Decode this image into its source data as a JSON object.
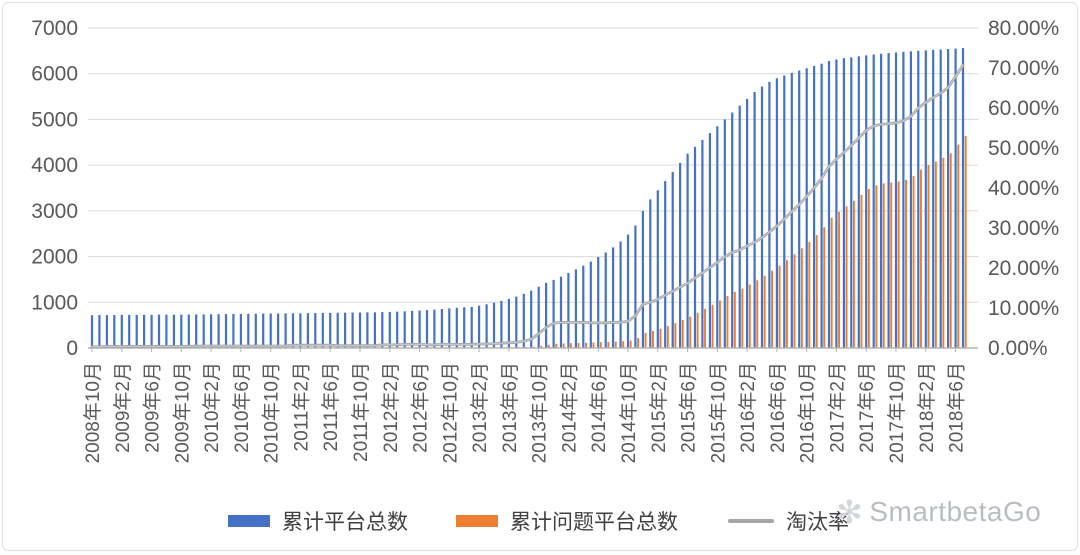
{
  "watermark": {
    "text": "SmartbetaGo",
    "icon": "snowflake-logo"
  },
  "chart_data": {
    "type": "bar",
    "subtype": "monthly bars with rate line (combo chart, dual axis)",
    "title": "",
    "x_start": "2008年10月",
    "x_end": "2018年7月",
    "x_points": 118,
    "x_tick_every": 4,
    "x_tick_labels": [
      "2008年10月",
      "2009年2月",
      "2009年6月",
      "2009年10月",
      "2010年2月",
      "2010年6月",
      "2010年10月",
      "2011年2月",
      "2011年6月",
      "2011年10月",
      "2012年2月",
      "2012年6月",
      "2012年10月",
      "2013年2月",
      "2013年6月",
      "2013年10月",
      "2014年2月",
      "2014年6月",
      "2014年10月",
      "2015年2月",
      "2015年6月",
      "2015年10月",
      "2016年2月",
      "2016年6月",
      "2016年10月",
      "2017年2月",
      "2017年6月",
      "2017年10月",
      "2018年2月",
      "2018年6月"
    ],
    "left_axis": {
      "min": 0,
      "max": 7000,
      "step": 1000,
      "ticks": [
        "0",
        "1000",
        "2000",
        "3000",
        "4000",
        "5000",
        "6000",
        "7000"
      ]
    },
    "right_axis": {
      "min": 0,
      "max": 80,
      "step": 10,
      "ticks": [
        "0.00%",
        "10.00%",
        "20.00%",
        "30.00%",
        "40.00%",
        "50.00%",
        "60.00%",
        "70.00%",
        "80.00%"
      ]
    },
    "grid": "horizontal",
    "legend_position": "bottom",
    "series": [
      {
        "name": "累计平台总数",
        "type": "bar",
        "axis": "left",
        "color": "#4472C4",
        "values": [
          718,
          719,
          720,
          722,
          723,
          724,
          725,
          726,
          727,
          728,
          729,
          730,
          731,
          733,
          734,
          736,
          738,
          740,
          742,
          744,
          746,
          748,
          750,
          752,
          754,
          755,
          756,
          758,
          760,
          762,
          764,
          766,
          768,
          770,
          772,
          774,
          776,
          778,
          782,
          785,
          790,
          796,
          803,
          811,
          820,
          830,
          841,
          853,
          866,
          880,
          890,
          900,
          925,
          955,
          990,
          1030,
          1075,
          1125,
          1185,
          1255,
          1340,
          1425,
          1490,
          1560,
          1640,
          1720,
          1800,
          1890,
          1990,
          2090,
          2200,
          2330,
          2480,
          2680,
          3000,
          3250,
          3450,
          3650,
          3850,
          4050,
          4250,
          4400,
          4550,
          4700,
          4850,
          5000,
          5150,
          5300,
          5450,
          5600,
          5720,
          5820,
          5900,
          5960,
          6020,
          6070,
          6120,
          6170,
          6220,
          6280,
          6310,
          6340,
          6360,
          6380,
          6400,
          6420,
          6435,
          6450,
          6465,
          6480,
          6490,
          6500,
          6510,
          6520,
          6530,
          6540,
          6550,
          6560
        ]
      },
      {
        "name": "累计问题平台总数",
        "type": "bar",
        "axis": "left",
        "color": "#ED7D31",
        "values": [
          2,
          2,
          3,
          3,
          3,
          3,
          3,
          3,
          3,
          3,
          3,
          3,
          3,
          3,
          4,
          4,
          4,
          4,
          4,
          4,
          4,
          4,
          4,
          4,
          4,
          4,
          4,
          5,
          5,
          5,
          5,
          5,
          5,
          5,
          5,
          5,
          5,
          5,
          5,
          6,
          6,
          6,
          7,
          7,
          7,
          7,
          7,
          8,
          8,
          8,
          8,
          8,
          9,
          10,
          11,
          12,
          14,
          16,
          20,
          28,
          48,
          72,
          92,
          100,
          105,
          110,
          115,
          120,
          126,
          132,
          140,
          150,
          165,
          215,
          330,
          370,
          420,
          480,
          545,
          615,
          690,
          770,
          855,
          945,
          1040,
          1140,
          1230,
          1300,
          1390,
          1480,
          1580,
          1690,
          1800,
          1920,
          2050,
          2180,
          2320,
          2470,
          2640,
          2850,
          2980,
          3100,
          3220,
          3350,
          3480,
          3560,
          3600,
          3620,
          3640,
          3680,
          3760,
          3900,
          4000,
          4080,
          4160,
          4260,
          4450,
          4640
        ]
      },
      {
        "name": "淘汰率",
        "type": "line",
        "axis": "right",
        "color": "#A6A6A6",
        "unit": "%",
        "values": [
          0.3,
          0.3,
          0.4,
          0.4,
          0.4,
          0.4,
          0.4,
          0.4,
          0.4,
          0.4,
          0.4,
          0.4,
          0.4,
          0.4,
          0.5,
          0.5,
          0.5,
          0.5,
          0.5,
          0.5,
          0.5,
          0.5,
          0.5,
          0.5,
          0.5,
          0.5,
          0.5,
          0.7,
          0.7,
          0.7,
          0.7,
          0.7,
          0.7,
          0.6,
          0.6,
          0.6,
          0.6,
          0.6,
          0.6,
          0.8,
          0.8,
          0.8,
          0.9,
          0.9,
          0.9,
          0.8,
          0.8,
          0.9,
          0.9,
          0.9,
          0.9,
          0.9,
          1.0,
          1.0,
          1.1,
          1.2,
          1.3,
          1.4,
          1.7,
          2.2,
          3.6,
          5.1,
          6.2,
          6.4,
          6.4,
          6.4,
          6.4,
          6.3,
          6.3,
          6.3,
          6.4,
          6.4,
          6.7,
          8.0,
          11.0,
          11.4,
          12.2,
          13.2,
          14.2,
          15.2,
          16.2,
          17.5,
          18.8,
          20.1,
          21.4,
          22.8,
          23.9,
          24.5,
          25.5,
          26.4,
          27.6,
          29.0,
          30.5,
          32.2,
          34.1,
          35.9,
          37.9,
          40.0,
          42.4,
          45.4,
          47.2,
          48.9,
          50.6,
          52.5,
          54.4,
          55.5,
          55.9,
          56.1,
          56.3,
          56.8,
          57.9,
          60.0,
          61.4,
          62.6,
          63.7,
          65.1,
          67.9,
          70.7
        ]
      }
    ],
    "legend": {
      "items": [
        {
          "label": "累计平台总数",
          "swatch": "bar",
          "color": "#4472C4"
        },
        {
          "label": "累计问题平台总数",
          "swatch": "bar",
          "color": "#ED7D31"
        },
        {
          "label": "淘汰率",
          "swatch": "line",
          "color": "#A6A6A6"
        }
      ]
    },
    "colors": {
      "grid": "#d9d9d9",
      "axis_text": "#595959",
      "baseline": "#b3b3b3"
    }
  }
}
